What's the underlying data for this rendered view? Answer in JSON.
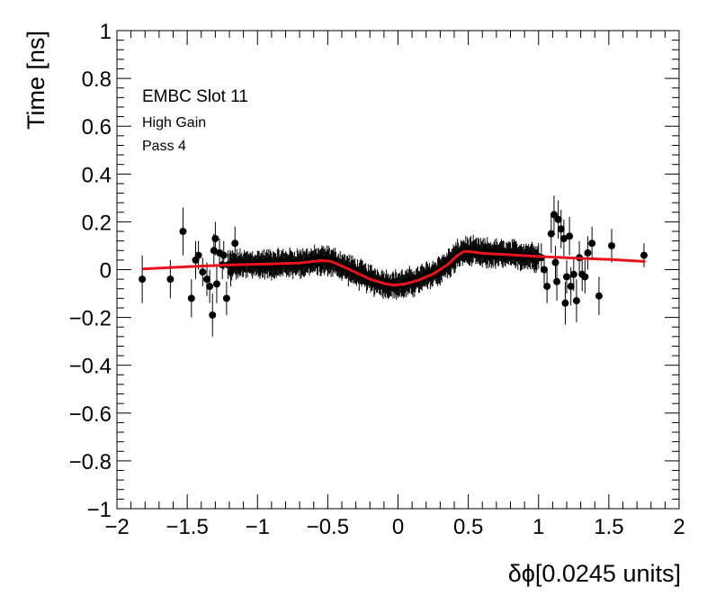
{
  "chart_data": {
    "type": "scatter",
    "title": "",
    "xlabel": "δϕ[0.0245 units]",
    "ylabel": "Time [ns]",
    "xlim": [
      -2,
      2
    ],
    "ylim": [
      -1,
      1
    ],
    "x_ticks": [
      -2,
      -1.5,
      -1,
      -0.5,
      0,
      0.5,
      1,
      1.5,
      2
    ],
    "y_ticks": [
      -1,
      -0.8,
      -0.6,
      -0.4,
      -0.2,
      0,
      0.2,
      0.4,
      0.6,
      0.8,
      1
    ],
    "x_tick_labels": [
      "−2",
      "−1.5",
      "−1",
      "−0.5",
      "0",
      "0.5",
      "1",
      "1.5",
      "2"
    ],
    "y_tick_labels": [
      "−1",
      "−0.8",
      "−0.6",
      "−0.4",
      "−0.2",
      "0",
      "0.2",
      "0.4",
      "0.6",
      "0.8",
      "1"
    ],
    "grid": false,
    "legend": "none",
    "annotations": [
      "EMBC Slot 11",
      "High Gain",
      "Pass 4"
    ],
    "colors": {
      "points": "#000000",
      "fit": "#e8141c",
      "frame": "#000000"
    },
    "sparse_points": [
      {
        "x": -1.82,
        "y": -0.04,
        "err": 0.1
      },
      {
        "x": -1.62,
        "y": -0.04,
        "err": 0.08
      },
      {
        "x": -1.53,
        "y": 0.16,
        "err": 0.1
      },
      {
        "x": -1.47,
        "y": -0.12,
        "err": 0.08
      },
      {
        "x": -1.44,
        "y": 0.04,
        "err": 0.08
      },
      {
        "x": -1.42,
        "y": 0.06,
        "err": 0.06
      },
      {
        "x": -1.39,
        "y": -0.01,
        "err": 0.06
      },
      {
        "x": -1.36,
        "y": -0.04,
        "err": 0.07
      },
      {
        "x": -1.34,
        "y": -0.07,
        "err": 0.07
      },
      {
        "x": -1.32,
        "y": -0.19,
        "err": 0.09
      },
      {
        "x": -1.31,
        "y": 0.08,
        "err": 0.07
      },
      {
        "x": -1.3,
        "y": 0.13,
        "err": 0.07
      },
      {
        "x": -1.29,
        "y": -0.06,
        "err": 0.08
      },
      {
        "x": -1.27,
        "y": 0.07,
        "err": 0.06
      },
      {
        "x": -1.25,
        "y": 0.02,
        "err": 0.06
      },
      {
        "x": -1.24,
        "y": 0.06,
        "err": 0.06
      },
      {
        "x": -1.22,
        "y": -0.12,
        "err": 0.07
      },
      {
        "x": -1.21,
        "y": 0.02,
        "err": 0.06
      },
      {
        "x": -1.19,
        "y": -0.01,
        "err": 0.06
      },
      {
        "x": -1.16,
        "y": 0.11,
        "err": 0.07
      },
      {
        "x": 1.02,
        "y": 0.05,
        "err": 0.06
      },
      {
        "x": 1.04,
        "y": 0.0,
        "err": 0.06
      },
      {
        "x": 1.06,
        "y": -0.07,
        "err": 0.07
      },
      {
        "x": 1.09,
        "y": 0.15,
        "err": 0.08
      },
      {
        "x": 1.11,
        "y": 0.23,
        "err": 0.08
      },
      {
        "x": 1.12,
        "y": 0.03,
        "err": 0.07
      },
      {
        "x": 1.13,
        "y": -0.05,
        "err": 0.08
      },
      {
        "x": 1.14,
        "y": 0.21,
        "err": 0.08
      },
      {
        "x": 1.16,
        "y": 0.17,
        "err": 0.08
      },
      {
        "x": 1.18,
        "y": 0.13,
        "err": 0.08
      },
      {
        "x": 1.19,
        "y": -0.14,
        "err": 0.09
      },
      {
        "x": 1.2,
        "y": -0.03,
        "err": 0.07
      },
      {
        "x": 1.22,
        "y": 0.14,
        "err": 0.08
      },
      {
        "x": 1.23,
        "y": -0.07,
        "err": 0.08
      },
      {
        "x": 1.25,
        "y": -0.02,
        "err": 0.07
      },
      {
        "x": 1.27,
        "y": -0.13,
        "err": 0.09
      },
      {
        "x": 1.29,
        "y": 0.05,
        "err": 0.07
      },
      {
        "x": 1.31,
        "y": -0.02,
        "err": 0.07
      },
      {
        "x": 1.33,
        "y": -0.03,
        "err": 0.07
      },
      {
        "x": 1.35,
        "y": 0.07,
        "err": 0.07
      },
      {
        "x": 1.38,
        "y": 0.11,
        "err": 0.07
      },
      {
        "x": 1.43,
        "y": -0.11,
        "err": 0.08
      },
      {
        "x": 1.52,
        "y": 0.1,
        "err": 0.07
      },
      {
        "x": 1.75,
        "y": 0.06,
        "err": 0.05
      }
    ],
    "dense_band": {
      "x_ranges": [
        [
          -1.2,
          -0.5
        ],
        [
          -0.5,
          1.0
        ]
      ],
      "err": 0.045
    },
    "fit_curve": [
      {
        "x": -1.82,
        "y": 0.003
      },
      {
        "x": -1.5,
        "y": 0.012
      },
      {
        "x": -1.2,
        "y": 0.02
      },
      {
        "x": -0.9,
        "y": 0.024
      },
      {
        "x": -0.7,
        "y": 0.028
      },
      {
        "x": -0.55,
        "y": 0.038
      },
      {
        "x": -0.48,
        "y": 0.035
      },
      {
        "x": -0.4,
        "y": 0.015
      },
      {
        "x": -0.3,
        "y": -0.012
      },
      {
        "x": -0.2,
        "y": -0.04
      },
      {
        "x": -0.1,
        "y": -0.058
      },
      {
        "x": -0.03,
        "y": -0.065
      },
      {
        "x": 0.05,
        "y": -0.06
      },
      {
        "x": 0.15,
        "y": -0.043
      },
      {
        "x": 0.25,
        "y": -0.018
      },
      {
        "x": 0.35,
        "y": 0.02
      },
      {
        "x": 0.42,
        "y": 0.058
      },
      {
        "x": 0.47,
        "y": 0.077
      },
      {
        "x": 0.52,
        "y": 0.075
      },
      {
        "x": 0.6,
        "y": 0.068
      },
      {
        "x": 0.8,
        "y": 0.062
      },
      {
        "x": 1.0,
        "y": 0.055
      },
      {
        "x": 1.3,
        "y": 0.047
      },
      {
        "x": 1.5,
        "y": 0.043
      },
      {
        "x": 1.76,
        "y": 0.034
      }
    ]
  }
}
